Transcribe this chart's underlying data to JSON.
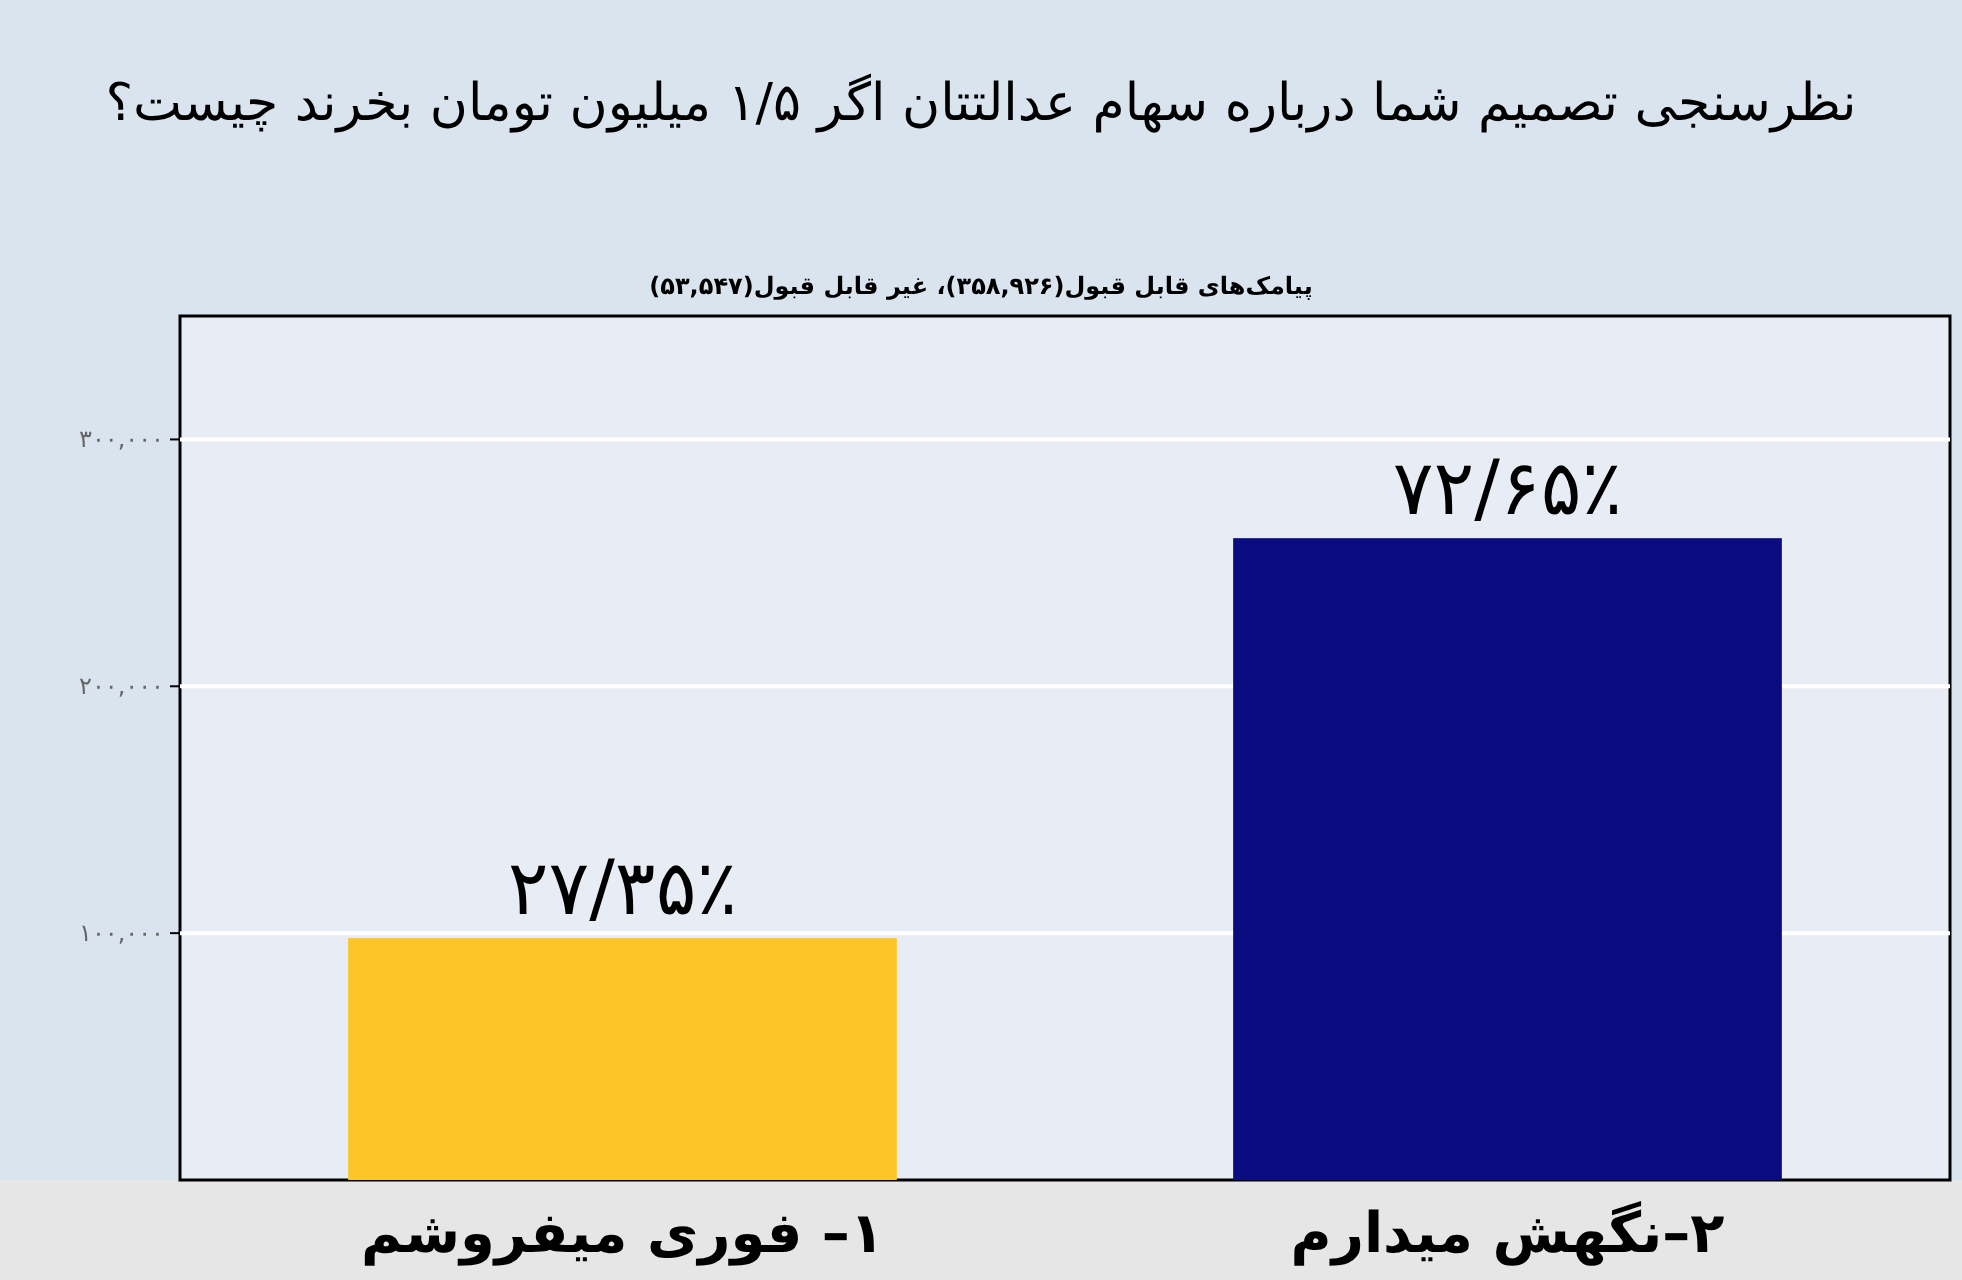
{
  "chart_data": {
    "type": "bar",
    "title": "نظرسنجی تصمیم شما درباره سهام عدالتتان اگر ۱/۵ میلیون تومان بخرند چیست؟",
    "subtitle": "پیامک‌های قابل قبول(۳۵۸,۹۲۶)، غیر قابل قبول(۵۳,۵۴۷)",
    "categories": [
      "۱– فوری میفروشم",
      "۲–نگهش میدارم"
    ],
    "values": [
      98000,
      260000
    ],
    "colors": [
      "#fcc628",
      "#0b0b80"
    ],
    "value_labels": [
      "۲۷/۳۵٪",
      "۷۲/۶۵٪"
    ],
    "ylim": [
      0,
      350000
    ],
    "yticks": [
      {
        "value": 100000,
        "label": "۱۰۰,۰۰۰"
      },
      {
        "value": 200000,
        "label": "۲۰۰,۰۰۰"
      },
      {
        "value": 300000,
        "label": "۳۰۰,۰۰۰"
      }
    ],
    "grid": "y"
  }
}
